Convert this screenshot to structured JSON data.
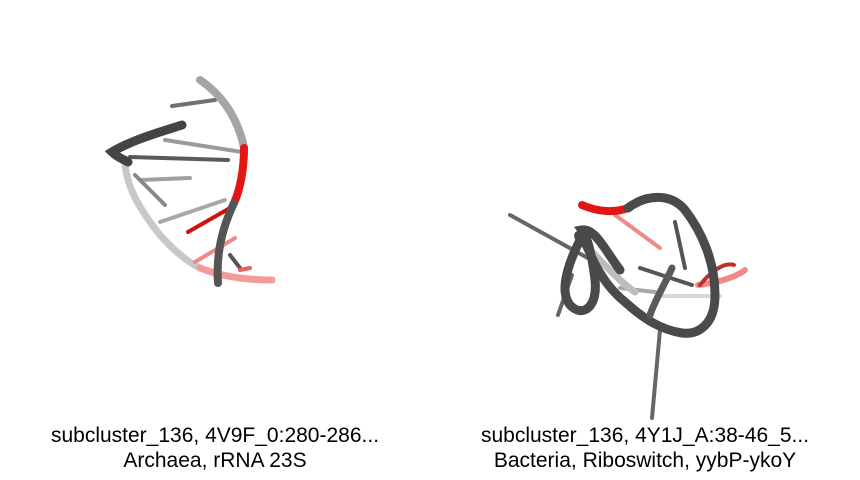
{
  "panels": [
    {
      "title": "subcluster_136, 4V9F_0:280-286...",
      "subtitle": "Archaea, rRNA 23S"
    },
    {
      "title": "subcluster_136, 4Y1J_A:38-46_5...",
      "subtitle": "Bacteria, Riboswitch, yybP-ykoY"
    }
  ],
  "colors": {
    "backbone_dark": "#555555",
    "backbone_light": "#bdbdbd",
    "highlight": "#e31515",
    "highlight_light": "#f08a8a",
    "background": "#ffffff"
  }
}
